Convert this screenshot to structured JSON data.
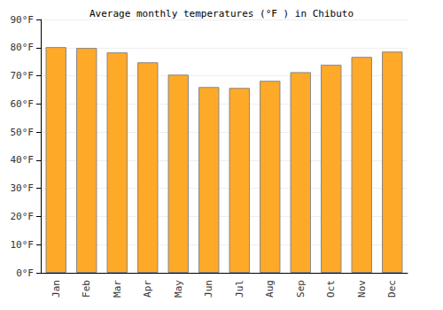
{
  "chart_data": {
    "type": "bar",
    "title": "Average monthly temperatures (°F ) in Chibuto",
    "categories": [
      "Jan",
      "Feb",
      "Mar",
      "Apr",
      "May",
      "Jun",
      "Jul",
      "Aug",
      "Sep",
      "Oct",
      "Nov",
      "Dec"
    ],
    "values": [
      80.2,
      79.9,
      78.3,
      74.8,
      70.4,
      66.0,
      65.7,
      68.2,
      71.3,
      73.9,
      76.7,
      78.6
    ],
    "color": "#ffa929",
    "ylim": [
      0,
      90
    ],
    "yticks": [
      {
        "value": 0,
        "label": "0°F"
      },
      {
        "value": 10,
        "label": "10°F"
      },
      {
        "value": 20,
        "label": "20°F"
      },
      {
        "value": 30,
        "label": "30°F"
      },
      {
        "value": 40,
        "label": "40°F"
      },
      {
        "value": 50,
        "label": "50°F"
      },
      {
        "value": 60,
        "label": "60°F"
      },
      {
        "value": 70,
        "label": "70°F"
      },
      {
        "value": 80,
        "label": "80°F"
      },
      {
        "value": 90,
        "label": "90°F"
      }
    ],
    "grid": true
  }
}
